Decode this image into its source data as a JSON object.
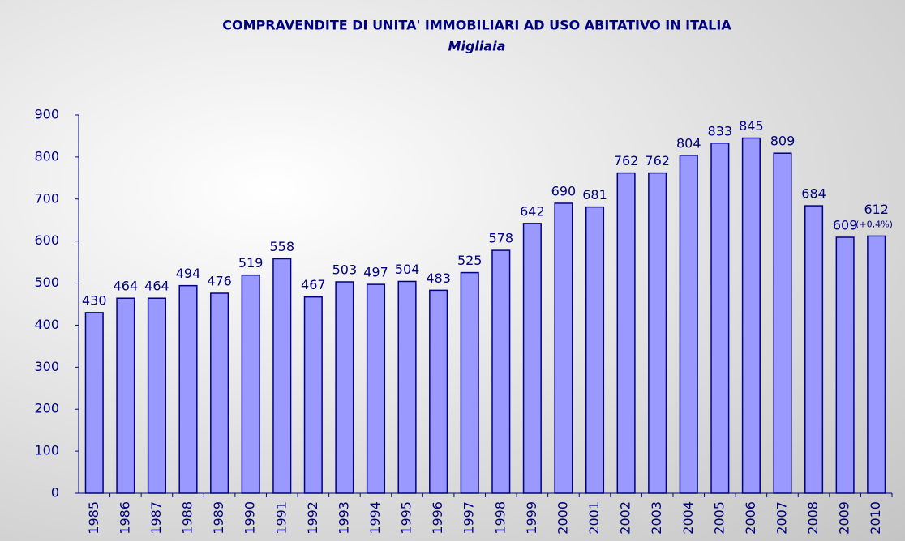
{
  "chart_data": {
    "type": "bar",
    "title": "COMPRAVENDITE DI UNITA' IMMOBILIARI AD USO ABITATIVO IN ITALIA",
    "subtitle": "Migliaia",
    "categories": [
      "1985",
      "1986",
      "1987",
      "1988",
      "1989",
      "1990",
      "1991",
      "1992",
      "1993",
      "1994",
      "1995",
      "1996",
      "1997",
      "1998",
      "1999",
      "2000",
      "2001",
      "2002",
      "2003",
      "2004",
      "2005",
      "2006",
      "2007",
      "2008",
      "2009",
      "2010"
    ],
    "values": [
      430,
      464,
      464,
      494,
      476,
      519,
      558,
      467,
      503,
      497,
      504,
      483,
      525,
      578,
      642,
      690,
      681,
      762,
      762,
      804,
      833,
      845,
      809,
      684,
      609,
      612
    ],
    "annotation": "(+0,4%)",
    "color": "#9999ff",
    "ylim": [
      0,
      900
    ],
    "yticks": [
      0,
      100,
      200,
      300,
      400,
      500,
      600,
      700,
      800,
      900
    ],
    "grid": false
  }
}
